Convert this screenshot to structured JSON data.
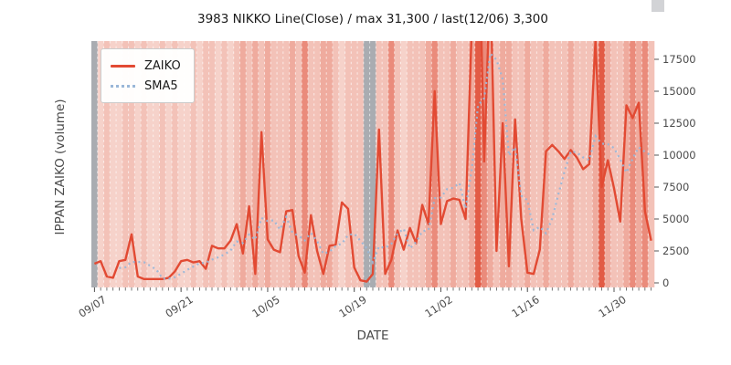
{
  "chart_data": {
    "type": "line",
    "title": "3983 NIKKO Line(Close) / max 31,300 / last(12/06) 3,300",
    "xlabel": "DATE",
    "ylabel": "IPPAN ZAIKO (volume)",
    "x_tick_labels": [
      "09/07",
      "09/21",
      "10/05",
      "10/19",
      "11/02",
      "11/16",
      "11/30"
    ],
    "x_tick_indices": [
      0,
      14,
      28,
      42,
      56,
      70,
      84
    ],
    "y_ticks": [
      0,
      2500,
      5000,
      7500,
      10000,
      12500,
      15000,
      17500
    ],
    "ylim": [
      -357,
      18929
    ],
    "grid": "vertical-daily-dashed-white",
    "legend": {
      "position": "upper left",
      "items": [
        {
          "label": "ZAIKO",
          "style": "solid",
          "color": "#e24a33"
        },
        {
          "label": "SMA5",
          "style": "dotted",
          "color": "#9ab7d8"
        }
      ]
    },
    "series": [
      {
        "name": "ZAIKO",
        "color": "#e24a33",
        "style": "solid",
        "values": [
          1500,
          1700,
          500,
          400,
          1700,
          1800,
          3800,
          500,
          300,
          300,
          300,
          300,
          400,
          900,
          1700,
          1800,
          1600,
          1700,
          1100,
          2900,
          2700,
          2700,
          3300,
          4600,
          2300,
          6000,
          700,
          11800,
          3400,
          2600,
          2400,
          5600,
          5700,
          2100,
          800,
          5300,
          2500,
          700,
          2900,
          3000,
          6300,
          5800,
          1200,
          200,
          100,
          700,
          12000,
          700,
          1800,
          4100,
          2600,
          4300,
          3100,
          6100,
          4600,
          15000,
          4600,
          6400,
          6600,
          6500,
          5000,
          20000,
          31300,
          9500,
          24000,
          2500,
          12500,
          1300,
          12800,
          5000,
          800,
          700,
          2600,
          10300,
          10800,
          10300,
          9700,
          10400,
          9800,
          8900,
          9300,
          19000,
          7500,
          9600,
          7400,
          4800,
          13900,
          12900,
          14100,
          5600,
          3300
        ]
      },
      {
        "name": "SMA5",
        "color": "#9ab7d8",
        "style": "dotted",
        "derived": "5-day simple moving average of ZAIKO"
      }
    ],
    "background_day_bands": {
      "description": "per-day vertical shading intensity; g=gray band, x=no band (gray axes bg)",
      "levels": "g1211221211212112122121232323222324223321222gg224212223422322354323322322322232223532234342x",
      "palette": {
        "1": "#f6d2ca",
        "2": "#f3c2b8",
        "3": "#efab9e",
        "4": "#ea8b7b",
        "5": "#e25b45",
        "g": "#a9acb1"
      },
      "axes_background": "#e5e4e6"
    }
  }
}
